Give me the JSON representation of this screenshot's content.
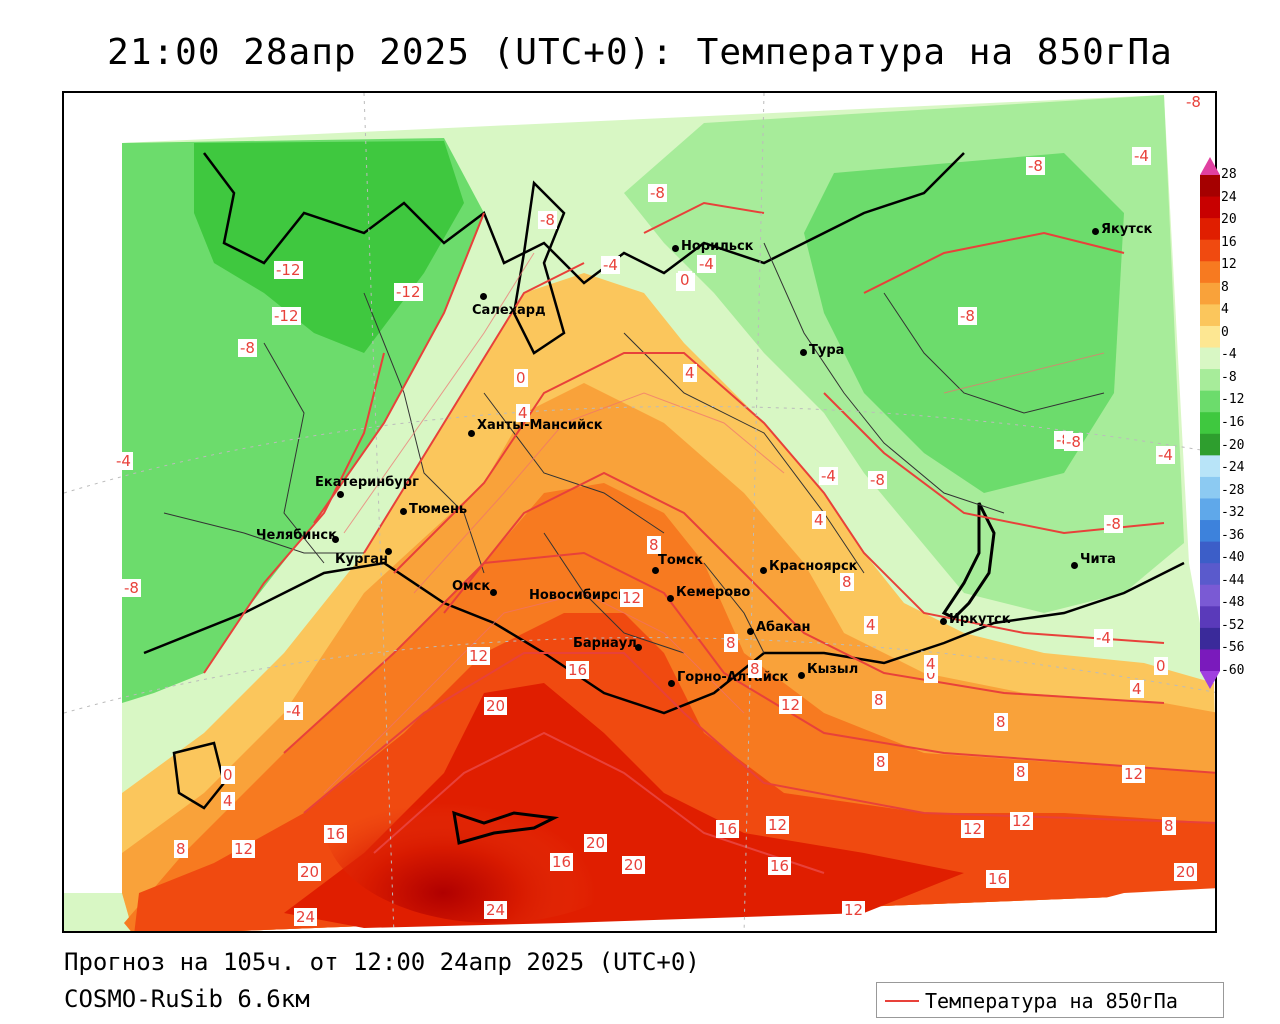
{
  "title": "21:00 28апр 2025 (UTC+0): Температура на 850гПа",
  "footer": {
    "forecast": "Прогноз на 105ч. от 12:00 24апр 2025 (UTC+0)",
    "model": "COSMO-RuSib 6.6км"
  },
  "legend": {
    "label": "Температура на 850гПа",
    "line_color": "#e8413a"
  },
  "colorbar": {
    "levels": [
      "28",
      "24",
      "20",
      "16",
      "12",
      "8",
      "4",
      "0",
      "-4",
      "-8",
      "-12",
      "-16",
      "-20",
      "-24",
      "-28",
      "-32",
      "-36",
      "-40",
      "-44",
      "-48",
      "-52",
      "-56",
      "-60"
    ],
    "colors": [
      "#a50000",
      "#c80000",
      "#e01e00",
      "#f04a10",
      "#f77a20",
      "#f9a23a",
      "#fbc65c",
      "#fde792",
      "#d8f7c4",
      "#a7ec9a",
      "#6cdc6c",
      "#3fc83f",
      "#2e9e2e",
      "#b8e4f8",
      "#8ccaf2",
      "#5fa8ea",
      "#3d82dc",
      "#3c5ec8",
      "#5a5acc",
      "#7a5ad4",
      "#5a3aba",
      "#3a2a9a",
      "#7a1abc"
    ],
    "top_arrow_color": "#e040a0",
    "bottom_arrow_color": "#a040e0"
  },
  "cities": [
    {
      "name": "Норильск"
    },
    {
      "name": "Якутск"
    },
    {
      "name": "Салехард"
    },
    {
      "name": "Тура"
    },
    {
      "name": "Ханты-Мансийск"
    },
    {
      "name": "Екатеринбург"
    },
    {
      "name": "Тюмень"
    },
    {
      "name": "Челябинск"
    },
    {
      "name": "Курган"
    },
    {
      "name": "Омск"
    },
    {
      "name": "Новосибирск"
    },
    {
      "name": "Томск"
    },
    {
      "name": "Кемерово"
    },
    {
      "name": "Красноярск"
    },
    {
      "name": "Абакан"
    },
    {
      "name": "Барнаул"
    },
    {
      "name": "Горно-Алтайск"
    },
    {
      "name": "Кызыл"
    },
    {
      "name": "Иркутск"
    },
    {
      "name": "Чита"
    }
  ],
  "isotherm_labels": [
    "-12",
    "-12",
    "-12",
    "-8",
    "-8",
    "-8",
    "-8",
    "-8",
    "-8",
    "-8",
    "-8",
    "-8",
    "-8",
    "-8",
    "-8",
    "-4",
    "-4",
    "-4",
    "-4",
    "-4",
    "-4",
    "-4",
    "-4",
    "0",
    "0",
    "0",
    "0",
    "0",
    "4",
    "4",
    "4",
    "4",
    "4",
    "4",
    "4",
    "8",
    "8",
    "8",
    "8",
    "8",
    "8",
    "8",
    "8",
    "8",
    "8",
    "12",
    "12",
    "12",
    "12",
    "12",
    "12",
    "12",
    "12",
    "12",
    "16",
    "16",
    "16",
    "16",
    "16",
    "16",
    "20",
    "20",
    "20",
    "20",
    "20",
    "24",
    "24"
  ]
}
